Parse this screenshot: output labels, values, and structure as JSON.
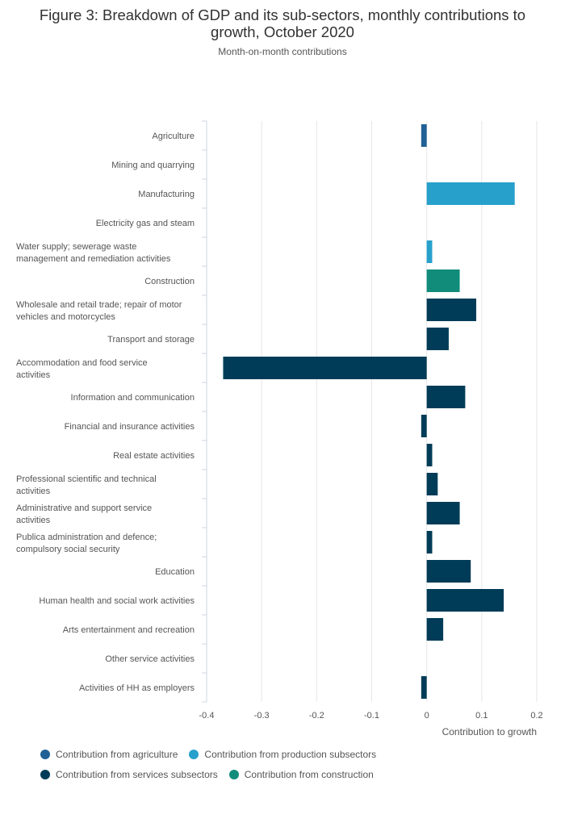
{
  "title": "Figure 3: Breakdown of GDP and its sub-sectors, monthly contributions to growth, October 2020",
  "subtitle": "Month-on-month contributions",
  "colors": {
    "agriculture": "#206095",
    "production": "#27a0cc",
    "services": "#003c57",
    "construction": "#118c7b"
  },
  "legend": [
    {
      "label": "Contribution from agriculture",
      "color": "#206095"
    },
    {
      "label": "Contribution from production subsectors",
      "color": "#27a0cc"
    },
    {
      "label": "Contribution from services subsectors",
      "color": "#003c57"
    },
    {
      "label": "Contribution from construction",
      "color": "#118c7b"
    }
  ],
  "chart_data": {
    "type": "bar",
    "orientation": "horizontal",
    "xlabel": "Contribution to growth",
    "xlim": [
      -0.4,
      0.2
    ],
    "xticks": [
      "-0.4",
      "-0.3",
      "-0.2",
      "-0.1",
      "0",
      "0.1",
      "0.2"
    ],
    "grid": true,
    "legend_position": "bottom",
    "series": [
      {
        "name": "Contribution from agriculture",
        "color": "#206095"
      },
      {
        "name": "Contribution from production subsectors",
        "color": "#27a0cc"
      },
      {
        "name": "Contribution from services subsectors",
        "color": "#003c57"
      },
      {
        "name": "Contribution from construction",
        "color": "#118c7b"
      }
    ],
    "categories": [
      {
        "label": [
          "Agriculture"
        ],
        "value": -0.01,
        "group": "agriculture"
      },
      {
        "label": [
          "Mining and quarrying"
        ],
        "value": 0,
        "group": "production"
      },
      {
        "label": [
          "Manufacturing"
        ],
        "value": 0.16,
        "group": "production"
      },
      {
        "label": [
          "Electricity gas and steam"
        ],
        "value": 0,
        "group": "production"
      },
      {
        "label": [
          "Water supply; sewerage waste",
          "management  and remediation activities"
        ],
        "value": 0.01,
        "group": "production"
      },
      {
        "label": [
          "Construction"
        ],
        "value": 0.06,
        "group": "construction"
      },
      {
        "label": [
          "Wholesale and retail trade; repair of motor",
          "vehicles and motorcycles"
        ],
        "value": 0.09,
        "group": "services"
      },
      {
        "label": [
          "Transport and storage"
        ],
        "value": 0.04,
        "group": "services"
      },
      {
        "label": [
          "Accommodation and food service",
          "activities"
        ],
        "value": -0.37,
        "group": "services"
      },
      {
        "label": [
          "Information and communication"
        ],
        "value": 0.07,
        "group": "services"
      },
      {
        "label": [
          "Financial and insurance activities"
        ],
        "value": -0.01,
        "group": "services"
      },
      {
        "label": [
          "Real estate activities"
        ],
        "value": 0.01,
        "group": "services"
      },
      {
        "label": [
          "Professional scientific and technical",
          "activities"
        ],
        "value": 0.02,
        "group": "services"
      },
      {
        "label": [
          "Administrative and support service",
          "activities"
        ],
        "value": 0.06,
        "group": "services"
      },
      {
        "label": [
          "Publica administration and defence;",
          "compulsory social security"
        ],
        "value": 0.01,
        "group": "services"
      },
      {
        "label": [
          "Education"
        ],
        "value": 0.08,
        "group": "services"
      },
      {
        "label": [
          "Human health and social work activities"
        ],
        "value": 0.14,
        "group": "services"
      },
      {
        "label": [
          "Arts entertainment and recreation"
        ],
        "value": 0.03,
        "group": "services"
      },
      {
        "label": [
          "Other service activities"
        ],
        "value": 0,
        "group": "services"
      },
      {
        "label": [
          "Activities of HH as employers"
        ],
        "value": -0.01,
        "group": "services"
      }
    ]
  }
}
